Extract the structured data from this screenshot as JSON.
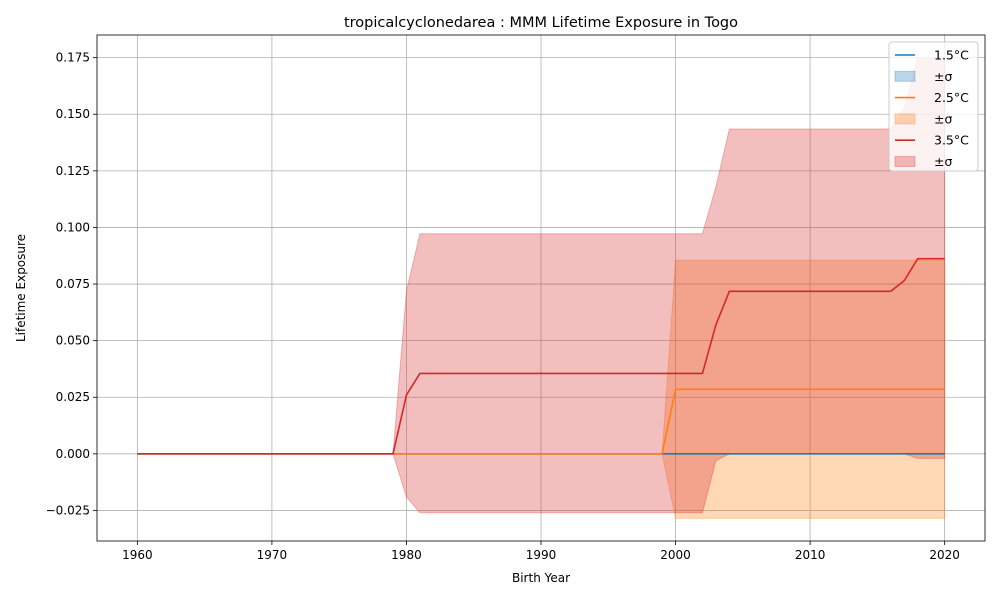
{
  "chart_data": {
    "type": "line",
    "title": "tropicalcyclonedarea : MMM Lifetime Exposure in Togo",
    "xlabel": "Birth Year",
    "ylabel": "Lifetime Exposure",
    "xlim": [
      1957,
      2023
    ],
    "ylim": [
      -0.0385,
      0.185
    ],
    "xticks": [
      1960,
      1970,
      1980,
      1990,
      2000,
      2010,
      2020
    ],
    "yticks": [
      -0.025,
      0.0,
      0.025,
      0.05,
      0.075,
      0.1,
      0.125,
      0.15,
      0.175
    ],
    "ytick_labels": [
      "−0.025",
      "0.000",
      "0.025",
      "0.050",
      "0.075",
      "0.100",
      "0.125",
      "0.150",
      "0.175"
    ],
    "grid": true,
    "legend_position": "top-right",
    "series": [
      {
        "name": "1.5°C",
        "band_name": "±σ",
        "color": "#1f77b4",
        "band_color": "#1f77b4",
        "points": [
          [
            1960,
            0
          ],
          [
            2020,
            0
          ]
        ],
        "band_upper": [
          [
            1960,
            0
          ],
          [
            2020,
            0
          ]
        ],
        "band_lower": [
          [
            1960,
            0
          ],
          [
            2020,
            0
          ]
        ]
      },
      {
        "name": "2.5°C",
        "band_name": "±σ",
        "color": "#ff7f0e",
        "band_color": "#ff7f0e",
        "points": [
          [
            1960,
            0
          ],
          [
            1999,
            0
          ],
          [
            2000,
            0.0285
          ],
          [
            2020,
            0.0285
          ]
        ],
        "band_upper": [
          [
            1960,
            0
          ],
          [
            1999,
            0
          ],
          [
            2000,
            0.0855
          ],
          [
            2020,
            0.0855
          ]
        ],
        "band_lower": [
          [
            1960,
            0
          ],
          [
            1999,
            0
          ],
          [
            2000,
            -0.0285
          ],
          [
            2020,
            -0.0285
          ]
        ]
      },
      {
        "name": "3.5°C",
        "band_name": "±σ",
        "color": "#d62728",
        "band_color": "#d62728",
        "points": [
          [
            1960,
            0
          ],
          [
            1979,
            0
          ],
          [
            1980,
            0.026
          ],
          [
            1981,
            0.0355
          ],
          [
            2002,
            0.0355
          ],
          [
            2003,
            0.057
          ],
          [
            2004,
            0.0718
          ],
          [
            2016,
            0.0718
          ],
          [
            2017,
            0.0765
          ],
          [
            2018,
            0.0862
          ],
          [
            2020,
            0.0862
          ]
        ],
        "band_upper": [
          [
            1960,
            0
          ],
          [
            1979,
            0
          ],
          [
            1980,
            0.072
          ],
          [
            1981,
            0.0972
          ],
          [
            2002,
            0.0972
          ],
          [
            2003,
            0.118
          ],
          [
            2004,
            0.1435
          ],
          [
            2016,
            0.1435
          ],
          [
            2017,
            0.153
          ],
          [
            2018,
            0.1745
          ],
          [
            2020,
            0.1745
          ]
        ],
        "band_lower": [
          [
            1960,
            0
          ],
          [
            1979,
            0
          ],
          [
            1980,
            -0.019
          ],
          [
            1981,
            -0.026
          ],
          [
            2002,
            -0.026
          ],
          [
            2003,
            -0.003
          ],
          [
            2004,
            0
          ],
          [
            2016,
            0
          ],
          [
            2017,
            0
          ],
          [
            2018,
            -0.002
          ],
          [
            2020,
            -0.002
          ]
        ]
      }
    ]
  }
}
